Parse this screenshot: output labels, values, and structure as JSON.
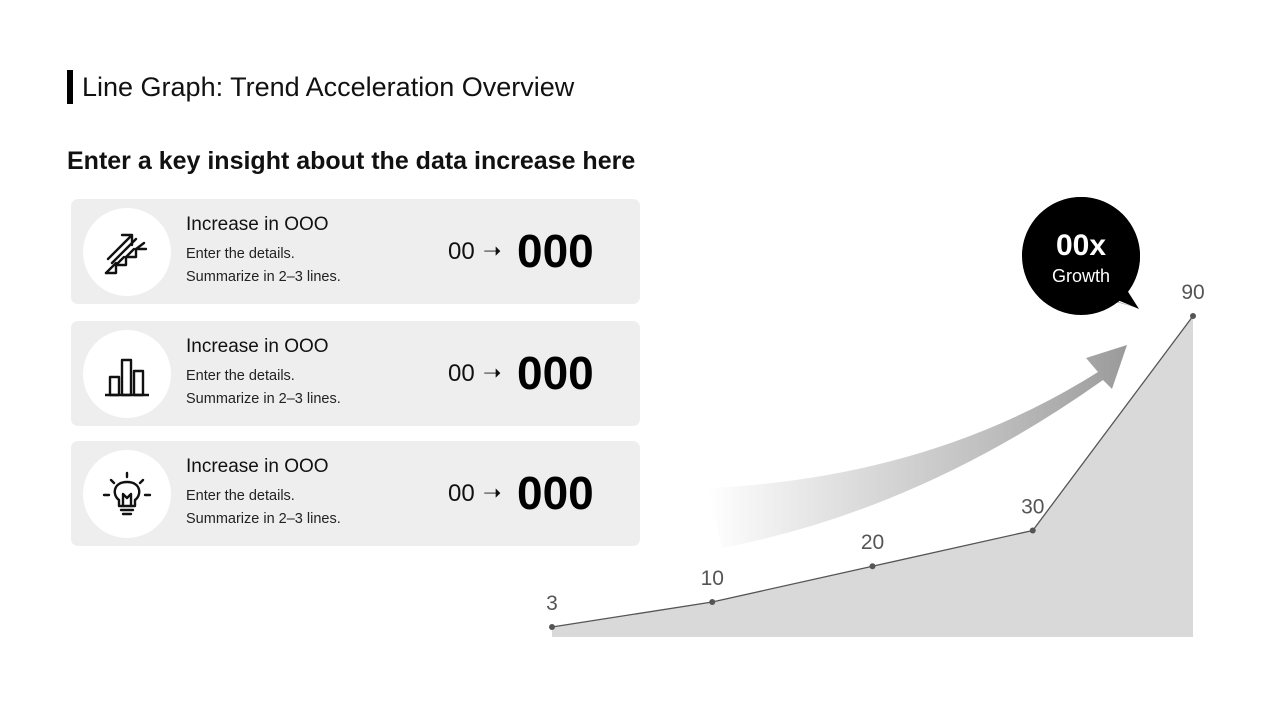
{
  "header": {
    "title": "Line Graph: Trend Acceleration Overview",
    "subtitle": "Enter a key insight about the data increase here"
  },
  "cards": [
    {
      "icon": "stairs-arrow-icon",
      "title": "Increase in OOO",
      "line1": "Enter the details.",
      "line2": "Summarize in 2–3 lines.",
      "from": "00",
      "arrow": "➝",
      "to": "000"
    },
    {
      "icon": "bar-chart-icon",
      "title": "Increase in OOO",
      "line1": "Enter the details.",
      "line2": "Summarize in 2–3 lines.",
      "from": "00",
      "arrow": "➝",
      "to": "000"
    },
    {
      "icon": "lightbulb-icon",
      "title": "Increase in OOO",
      "line1": "Enter the details.",
      "line2": "Summarize in 2–3 lines.",
      "from": "00",
      "arrow": "➝",
      "to": "000"
    }
  ],
  "bubble": {
    "value": "00x",
    "label": "Growth"
  },
  "colors": {
    "area": "#d9d9d9",
    "line": "#555555",
    "card_bg": "#eeeeee",
    "bubble": "#000000"
  },
  "chart_data": {
    "type": "area",
    "series": [
      {
        "values": [
          3,
          10,
          20,
          30,
          90
        ]
      }
    ],
    "data_labels": [
      "3",
      "10",
      "20",
      "30",
      "90"
    ],
    "grid": false,
    "legend": "none"
  }
}
